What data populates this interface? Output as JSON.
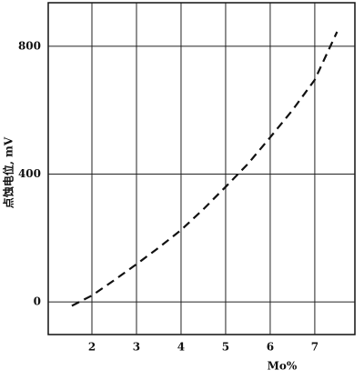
{
  "chart_data": {
    "type": "line",
    "x_label": "Mo%",
    "y_label": "点蚀电位, mV",
    "x": [
      1.55,
      2,
      2.5,
      3,
      3.5,
      4,
      4.5,
      5,
      5.5,
      6,
      6.5,
      7,
      7.5
    ],
    "series": [
      {
        "color": "#111111",
        "values": [
          -12,
          20,
          68,
          118,
          170,
          225,
          290,
          360,
          432,
          515,
          600,
          695,
          845
        ]
      }
    ],
    "xlim": [
      1.02,
      7.9
    ],
    "xticks": [
      2,
      3,
      4,
      5,
      6,
      7
    ],
    "ylim": [
      -102,
      936
    ],
    "yticks": [
      0,
      400,
      800
    ],
    "grid": true,
    "dashed": true
  }
}
